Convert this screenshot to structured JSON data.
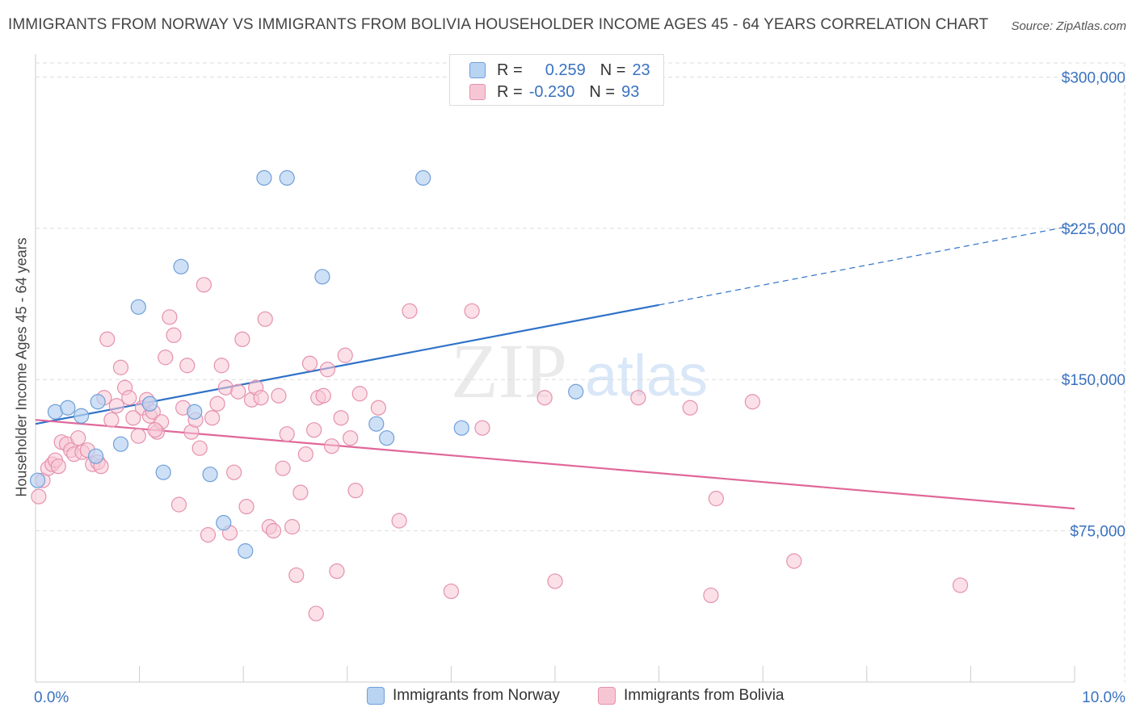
{
  "header": {
    "title": "IMMIGRANTS FROM NORWAY VS IMMIGRANTS FROM BOLIVIA HOUSEHOLDER INCOME AGES 45 - 64 YEARS CORRELATION CHART",
    "source": "Source: ZipAtlas.com"
  },
  "watermark": {
    "zip": "ZIP",
    "atlas": "atlas"
  },
  "legend": {
    "norway": {
      "r_label": "R =",
      "r_value": "0.259",
      "n_label": "N =",
      "n_value": "23"
    },
    "bolivia": {
      "r_label": "R =",
      "r_value": "-0.230",
      "n_label": "N =",
      "n_value": "93"
    }
  },
  "bottom_legend": {
    "norway": "Immigrants from Norway",
    "bolivia": "Immigrants from Bolivia"
  },
  "colors": {
    "norway_fill": "#b9d3f2",
    "norway_stroke": "#6f9fd8",
    "norway_line": "#2f72c8",
    "bolivia_fill": "#f7c6d5",
    "bolivia_stroke": "#e591ad",
    "bolivia_line": "#e0679a",
    "tick_label": "#3a72c0",
    "grid": "#dddddd"
  },
  "chart_data": {
    "type": "scatter",
    "title": "IMMIGRANTS FROM NORWAY VS IMMIGRANTS FROM BOLIVIA HOUSEHOLDER INCOME AGES 45 - 64 YEARS CORRELATION CHART",
    "xlabel": "",
    "ylabel": "Householder Income Ages 45 - 64 years",
    "xlim": [
      0,
      10
    ],
    "ylim": [
      0,
      307000
    ],
    "x_tick_labels": [
      "0.0%",
      "10.0%"
    ],
    "y_ticks": [
      75000,
      150000,
      225000,
      300000
    ],
    "y_tick_labels": [
      "$75,000",
      "$150,000",
      "$225,000",
      "$300,000"
    ],
    "grid": true,
    "legend_position": "top-center",
    "series": [
      {
        "name": "Immigrants from Norway",
        "trend": {
          "x0": 0.0,
          "y0": 128000,
          "x1": 6.0,
          "y1": 187000,
          "dashed_to_x": 10.0,
          "dashed_to_y": 226500
        },
        "points": [
          [
            0.02,
            100000
          ],
          [
            0.19,
            134000
          ],
          [
            0.31,
            136000
          ],
          [
            0.44,
            132000
          ],
          [
            0.6,
            139000
          ],
          [
            0.58,
            112000
          ],
          [
            0.82,
            118000
          ],
          [
            0.99,
            186000
          ],
          [
            1.1,
            138000
          ],
          [
            1.23,
            104000
          ],
          [
            1.4,
            206000
          ],
          [
            1.53,
            134000
          ],
          [
            1.68,
            103000
          ],
          [
            1.81,
            79000
          ],
          [
            2.02,
            65000
          ],
          [
            2.2,
            250000
          ],
          [
            2.42,
            250000
          ],
          [
            2.76,
            201000
          ],
          [
            3.28,
            128000
          ],
          [
            3.38,
            121000
          ],
          [
            3.73,
            250000
          ],
          [
            4.1,
            126000
          ],
          [
            5.2,
            144000
          ]
        ]
      },
      {
        "name": "Immigrants from Bolivia",
        "trend": {
          "x0": 0.0,
          "y0": 130000,
          "x1": 10.0,
          "y1": 86000
        },
        "points": [
          [
            0.03,
            92000
          ],
          [
            0.07,
            100000
          ],
          [
            0.12,
            106000
          ],
          [
            0.16,
            108000
          ],
          [
            0.19,
            110000
          ],
          [
            0.22,
            107000
          ],
          [
            0.25,
            119000
          ],
          [
            0.3,
            118000
          ],
          [
            0.34,
            115000
          ],
          [
            0.37,
            113000
          ],
          [
            0.41,
            121000
          ],
          [
            0.45,
            114000
          ],
          [
            0.5,
            115000
          ],
          [
            0.55,
            108000
          ],
          [
            0.6,
            109000
          ],
          [
            0.63,
            107000
          ],
          [
            0.66,
            141000
          ],
          [
            0.69,
            170000
          ],
          [
            0.73,
            130000
          ],
          [
            0.78,
            137000
          ],
          [
            0.82,
            156000
          ],
          [
            0.86,
            146000
          ],
          [
            0.9,
            141000
          ],
          [
            0.94,
            131000
          ],
          [
            0.99,
            122000
          ],
          [
            1.03,
            136000
          ],
          [
            1.07,
            140000
          ],
          [
            1.1,
            132000
          ],
          [
            1.13,
            134000
          ],
          [
            1.17,
            124000
          ],
          [
            1.21,
            129000
          ],
          [
            1.25,
            161000
          ],
          [
            1.29,
            181000
          ],
          [
            1.33,
            172000
          ],
          [
            1.38,
            88000
          ],
          [
            1.42,
            136000
          ],
          [
            1.46,
            157000
          ],
          [
            1.5,
            124000
          ],
          [
            1.54,
            130000
          ],
          [
            1.58,
            116000
          ],
          [
            1.62,
            197000
          ],
          [
            1.66,
            73000
          ],
          [
            1.7,
            131000
          ],
          [
            1.75,
            138000
          ],
          [
            1.79,
            157000
          ],
          [
            1.83,
            146000
          ],
          [
            1.87,
            74000
          ],
          [
            1.91,
            104000
          ],
          [
            1.95,
            144000
          ],
          [
            1.99,
            170000
          ],
          [
            2.03,
            87000
          ],
          [
            2.08,
            140000
          ],
          [
            2.12,
            146000
          ],
          [
            2.17,
            141000
          ],
          [
            2.21,
            180000
          ],
          [
            2.25,
            77000
          ],
          [
            2.29,
            75000
          ],
          [
            2.34,
            142000
          ],
          [
            2.38,
            106000
          ],
          [
            2.42,
            123000
          ],
          [
            2.47,
            77000
          ],
          [
            2.51,
            53000
          ],
          [
            2.55,
            94000
          ],
          [
            2.6,
            113000
          ],
          [
            2.64,
            158000
          ],
          [
            2.68,
            125000
          ],
          [
            2.72,
            141000
          ],
          [
            2.77,
            142000
          ],
          [
            2.81,
            155000
          ],
          [
            2.85,
            117000
          ],
          [
            2.9,
            55000
          ],
          [
            2.94,
            131000
          ],
          [
            2.98,
            162000
          ],
          [
            3.03,
            121000
          ],
          [
            3.08,
            95000
          ],
          [
            3.12,
            143000
          ],
          [
            3.3,
            136000
          ],
          [
            3.5,
            80000
          ],
          [
            3.6,
            184000
          ],
          [
            4.0,
            45000
          ],
          [
            4.2,
            184000
          ],
          [
            4.3,
            126000
          ],
          [
            4.9,
            141000
          ],
          [
            5.0,
            50000
          ],
          [
            5.8,
            141000
          ],
          [
            6.3,
            136000
          ],
          [
            6.5,
            43000
          ],
          [
            6.55,
            91000
          ],
          [
            6.9,
            139000
          ],
          [
            7.3,
            60000
          ],
          [
            8.9,
            48000
          ],
          [
            2.7,
            34000
          ],
          [
            1.15,
            125000
          ]
        ]
      }
    ]
  }
}
